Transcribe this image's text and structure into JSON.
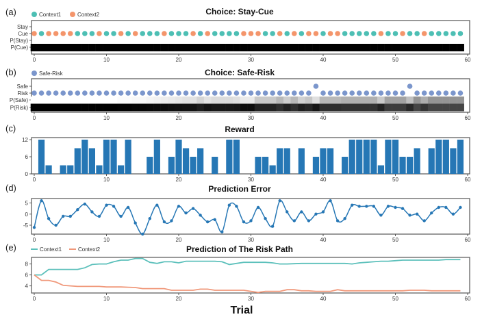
{
  "chart_data": [
    {
      "panel": "(a)",
      "type": "scatter",
      "title": "Choice: Stay-Cue",
      "yticklabels": [
        "Stay",
        "Cue",
        "P(Stay)",
        "P(Cue)"
      ],
      "legend": [
        {
          "name": "Context1",
          "color": "#4dbfb4"
        },
        {
          "name": "Context2",
          "color": "#f4956b"
        }
      ],
      "legend_position": "top-left",
      "choice": "Cue",
      "context": [
        2,
        1,
        2,
        2,
        2,
        2,
        1,
        1,
        1,
        2,
        1,
        1,
        2,
        1,
        2,
        1,
        1,
        1,
        2,
        1,
        1,
        1,
        2,
        1,
        2,
        1,
        1,
        1,
        1,
        2,
        2,
        2,
        1,
        1,
        2,
        1,
        2,
        1,
        2,
        2,
        1,
        2,
        2,
        1,
        1,
        1,
        1,
        1,
        2,
        1,
        1,
        2,
        1,
        1,
        2,
        1,
        1,
        1,
        1,
        1
      ],
      "p_cue": 1.0,
      "xlim": [
        0,
        60
      ],
      "xticks": [
        0,
        10,
        20,
        30,
        40,
        50,
        60
      ]
    },
    {
      "panel": "(b)",
      "type": "scatter",
      "title": "Choice: Safe-Risk",
      "yticklabels": [
        "Safe",
        "Risk",
        "P(Safe)",
        "P(Risk)"
      ],
      "legend": [
        {
          "name": "Safe-Risk",
          "color": "#7b96cc"
        }
      ],
      "legend_position": "top-left",
      "choices": [
        "R",
        "R",
        "R",
        "R",
        "R",
        "R",
        "R",
        "R",
        "R",
        "R",
        "R",
        "R",
        "R",
        "R",
        "R",
        "R",
        "R",
        "R",
        "R",
        "R",
        "R",
        "R",
        "R",
        "R",
        "R",
        "R",
        "R",
        "R",
        "R",
        "R",
        "R",
        "R",
        "R",
        "R",
        "R",
        "R",
        "R",
        "R",
        "R",
        "S",
        "R",
        "R",
        "R",
        "R",
        "R",
        "R",
        "R",
        "R",
        "R",
        "R",
        "R",
        "R",
        "S",
        "R",
        "R",
        "R",
        "R",
        "R",
        "R",
        "R"
      ],
      "p_safe": [
        0.0,
        0.0,
        0.0,
        0.0,
        0.0,
        0.0,
        0.0,
        0.0,
        0.0,
        0.0,
        0.0,
        0.0,
        0.01,
        0.01,
        0.02,
        0.02,
        0.03,
        0.04,
        0.05,
        0.06,
        0.07,
        0.08,
        0.08,
        0.12,
        0.08,
        0.1,
        0.1,
        0.1,
        0.09,
        0.06,
        0.06,
        0.15,
        0.15,
        0.15,
        0.2,
        0.14,
        0.2,
        0.13,
        0.16,
        0.09,
        0.2,
        0.2,
        0.2,
        0.22,
        0.22,
        0.22,
        0.22,
        0.22,
        0.15,
        0.26,
        0.26,
        0.26,
        0.18,
        0.3,
        0.23,
        0.3,
        0.3,
        0.3,
        0.3,
        0.3
      ],
      "xlim": [
        0,
        60
      ],
      "xticks": [
        0,
        10,
        20,
        30,
        40,
        50,
        60
      ]
    },
    {
      "panel": "(c)",
      "type": "bar",
      "title": "Reward",
      "color": "#2677b5",
      "x": "trial 0-59",
      "values": [
        0,
        12,
        3,
        0,
        3,
        3,
        9,
        12,
        9,
        3,
        12,
        12,
        3,
        12,
        0,
        0,
        6,
        12,
        0,
        6,
        12,
        9,
        6,
        9,
        0,
        6,
        0,
        12,
        12,
        0,
        0,
        6,
        6,
        3,
        9,
        9,
        0,
        9,
        0,
        6,
        9,
        9,
        0,
        6,
        12,
        12,
        12,
        12,
        3,
        12,
        12,
        6,
        6,
        9,
        0,
        9,
        12,
        12,
        9,
        12
      ],
      "ylim": [
        0,
        12
      ],
      "yticks": [
        0,
        6,
        12
      ],
      "xlim": [
        0,
        60
      ],
      "xticks": [
        0,
        10,
        20,
        30,
        40,
        50,
        60
      ]
    },
    {
      "panel": "(d)",
      "type": "line",
      "title": "Prediction Error",
      "color": "#2677b5",
      "values": [
        -6,
        6,
        -2,
        -5,
        -1,
        -1,
        2,
        4.5,
        1,
        -1,
        4,
        3.5,
        -1,
        3,
        -4,
        -9,
        -2,
        4,
        -3.5,
        -3,
        3.5,
        0.5,
        2.5,
        -0.5,
        -3.5,
        -2.5,
        -8,
        4,
        3.5,
        -3.5,
        -3,
        3,
        -2,
        -5.5,
        6,
        1,
        -3,
        1,
        -3,
        0,
        1,
        6,
        -3,
        -2,
        4,
        3.5,
        3.5,
        3.5,
        -0.5,
        3.5,
        3,
        2.5,
        -0.5,
        0,
        -3,
        0.5,
        3,
        3,
        0,
        3
      ],
      "ylim": [
        -9,
        7
      ],
      "yticks": [
        -5,
        0,
        5
      ],
      "xlim": [
        0,
        60
      ],
      "xticks": [
        0,
        10,
        20,
        30,
        40,
        50,
        60
      ]
    },
    {
      "panel": "(e)",
      "type": "line",
      "title": "Prediction of The Risk Path",
      "xlabel": "Trial",
      "legend_position": "top-left",
      "series": [
        {
          "name": "Context1",
          "color": "#5cc0bb",
          "values": [
            6,
            6,
            7,
            7,
            7,
            7,
            7,
            7.3,
            7.9,
            8,
            8,
            8.4,
            8.7,
            8.7,
            9,
            9,
            8.3,
            8.1,
            8.4,
            8.4,
            8.2,
            8.5,
            8.5,
            8.5,
            8.5,
            8.5,
            8.4,
            7.9,
            8.1,
            8.3,
            8.3,
            8.3,
            8.3,
            8.2,
            8,
            8,
            8.05,
            8.1,
            8.1,
            8.1,
            8.1,
            8.1,
            8.1,
            8.1,
            8,
            8.2,
            8.3,
            8.4,
            8.5,
            8.5,
            8.6,
            8.7,
            8.7,
            8.7,
            8.7,
            8.7,
            8.7,
            8.8,
            8.8,
            8.8
          ]
        },
        {
          "name": "Context2",
          "color": "#f0987a",
          "values": [
            6,
            5,
            5,
            4.7,
            4.1,
            4,
            3.9,
            3.9,
            3.9,
            3.9,
            3.8,
            3.8,
            3.8,
            3.75,
            3.7,
            3.5,
            3.5,
            3.5,
            3.5,
            3.2,
            3.2,
            3.2,
            3.2,
            3.4,
            3.4,
            3.2,
            3.2,
            3.2,
            3.2,
            3.2,
            3,
            2.8,
            3,
            3,
            3,
            3.3,
            3.3,
            3.1,
            3.1,
            3,
            3,
            3,
            3.3,
            3.1,
            3.1,
            3.1,
            3.1,
            3.1,
            3.1,
            3.1,
            3.1,
            3.1,
            3.2,
            3.2,
            3.2,
            3.1,
            3.1,
            3.1,
            3.1,
            3.1
          ]
        }
      ],
      "ylim": [
        2.7,
        9.2
      ],
      "yticks": [
        4,
        6,
        8
      ],
      "xlim": [
        0,
        60
      ],
      "xticks": [
        0,
        10,
        20,
        30,
        40,
        50,
        60
      ]
    }
  ]
}
